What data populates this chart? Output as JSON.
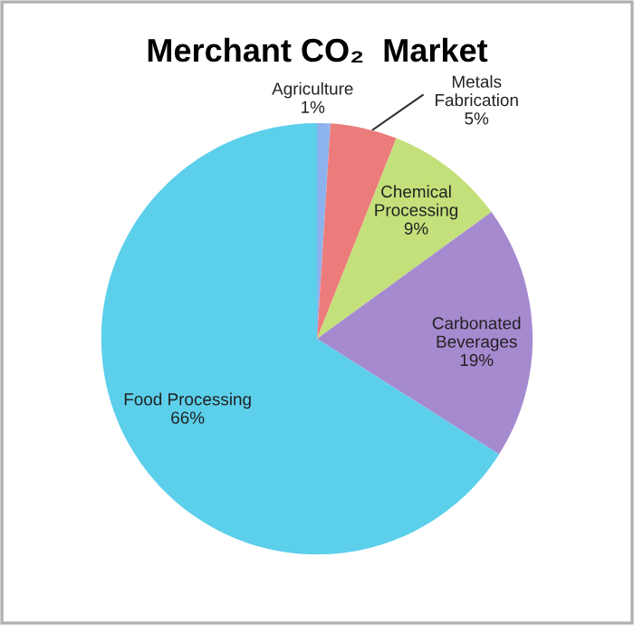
{
  "chart_data": {
    "type": "pie",
    "title": "Merchant CO₂  Market",
    "categories": [
      "Agriculture",
      "Metals Fabrication",
      "Chemical Processing",
      "Carbonated Beverages",
      "Food Processing"
    ],
    "values": [
      1,
      5,
      9,
      19,
      66
    ],
    "value_labels": [
      "1%",
      "5%",
      "9%",
      "19%",
      "66%"
    ],
    "colors": [
      "#8db3ee",
      "#ec7c7c",
      "#c4e07a",
      "#a68ad0",
      "#5ccfeb"
    ]
  }
}
